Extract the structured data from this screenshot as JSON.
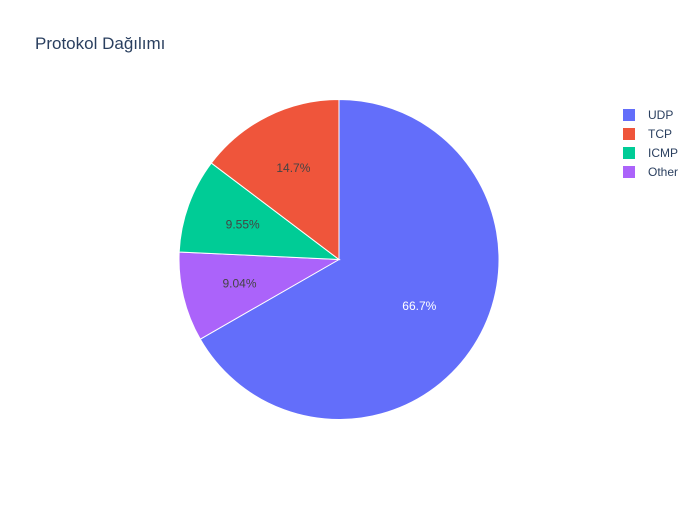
{
  "chart_data": {
    "type": "pie",
    "title": "Protokol Dağılımı",
    "slices": [
      {
        "label": "UDP",
        "percent": 66.7,
        "display": "66.7%",
        "color": "#636efa",
        "label_color": "#ffffff"
      },
      {
        "label": "Other",
        "percent": 9.04,
        "display": "9.04%",
        "color": "#ab63fa",
        "label_color": "#444444"
      },
      {
        "label": "ICMP",
        "percent": 9.55,
        "display": "9.55%",
        "color": "#00cc96",
        "label_color": "#444444"
      },
      {
        "label": "TCP",
        "percent": 14.7,
        "display": "14.7%",
        "color": "#ef553b",
        "label_color": "#444444"
      }
    ],
    "legend": {
      "placement": "top-right",
      "entries": [
        {
          "label": "UDP",
          "color": "#636efa"
        },
        {
          "label": "TCP",
          "color": "#ef553b"
        },
        {
          "label": "ICMP",
          "color": "#00cc96"
        },
        {
          "label": "Other",
          "color": "#ab63fa"
        }
      ]
    }
  }
}
